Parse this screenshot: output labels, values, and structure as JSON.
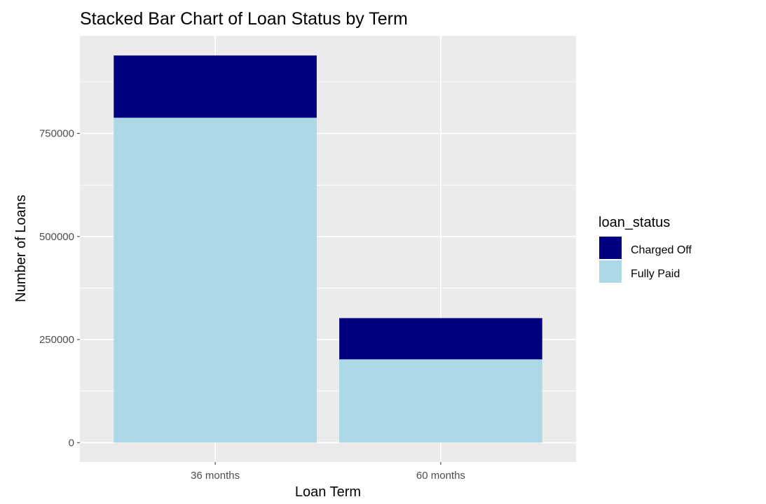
{
  "chart_data": {
    "type": "bar",
    "stacked": true,
    "title": "Stacked Bar Chart of Loan Status by Term",
    "xlabel": "Loan Term",
    "ylabel": "Number of Loans",
    "categories": [
      "36 months",
      "60 months"
    ],
    "series": [
      {
        "name": "Fully Paid",
        "values": [
          788000,
          202000
        ],
        "color": "#ADD8E6"
      },
      {
        "name": "Charged Off",
        "values": [
          151000,
          100000
        ],
        "color": "#000080"
      }
    ],
    "yticks": [
      0,
      250000,
      500000,
      750000
    ],
    "ytick_labels": [
      "0",
      "250000",
      "500000",
      "750000"
    ],
    "ylim": [
      -47000,
      987000
    ],
    "grid": true,
    "panel_background": "#EBEBEB",
    "legend": {
      "title": "loan_status",
      "position": "right",
      "entries": [
        {
          "label": "Charged Off",
          "color": "#000080"
        },
        {
          "label": "Fully Paid",
          "color": "#ADD8E6"
        }
      ]
    }
  }
}
